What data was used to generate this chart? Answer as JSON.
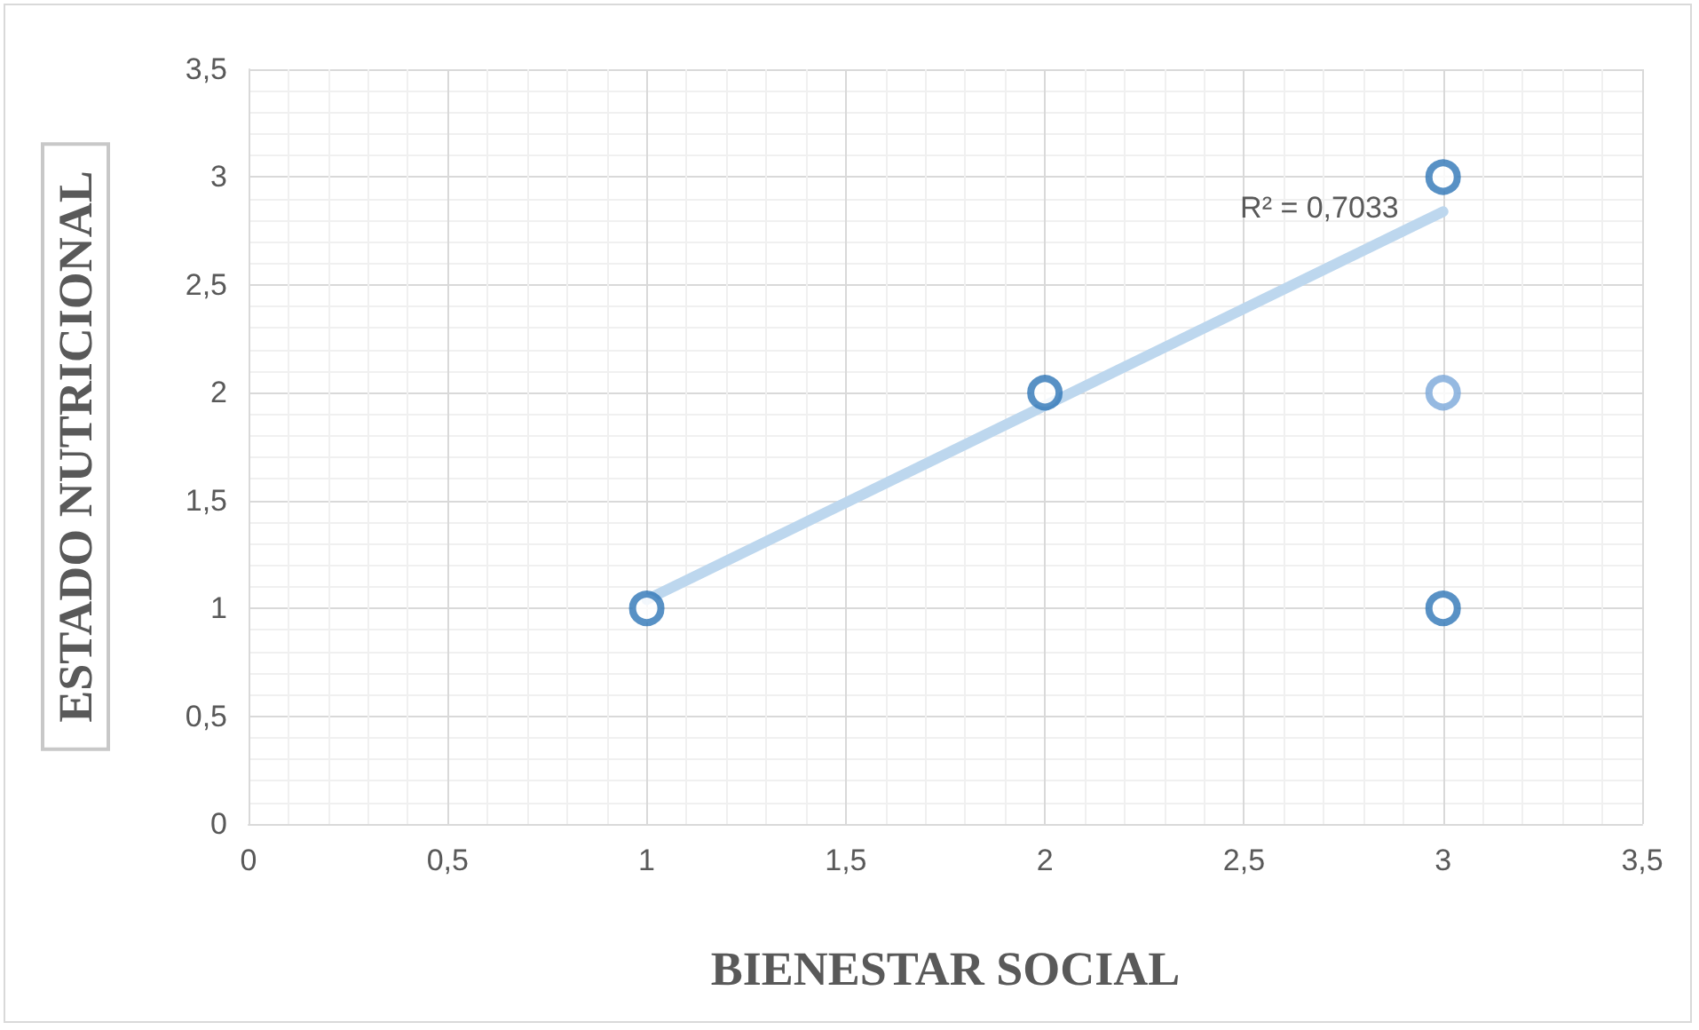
{
  "chart_data": {
    "type": "scatter",
    "xlabel": "BIENESTAR SOCIAL",
    "ylabel": "ESTADO NUTRICIONAL",
    "annotations": [
      "R² = 0,7033"
    ],
    "series": [
      {
        "x": [
          1,
          2,
          3,
          3,
          3
        ],
        "values": [
          1,
          2,
          3,
          2,
          1
        ],
        "colors": [
          "#2e75b6",
          "#2e75b6",
          "#2e75b6",
          "#7ba7d9",
          "#2e75b6"
        ]
      },
      {
        "type": "line",
        "x": [
          1,
          3
        ],
        "values": [
          1.04,
          2.84
        ],
        "color": "#bdd7ee",
        "marker": "none"
      }
    ],
    "xlim": [
      0,
      3.5
    ],
    "xticks": [
      0,
      {
        "value": 0.5,
        "label": "0,5"
      },
      1,
      {
        "value": 1.5,
        "label": "1,5"
      },
      2,
      {
        "value": 2.5,
        "label": "2,5"
      },
      3,
      {
        "value": 3.5,
        "label": "3,5"
      }
    ],
    "ylim": [
      0,
      3.5
    ],
    "yticks": [
      0,
      {
        "value": 0.5,
        "label": "0,5"
      },
      1,
      {
        "value": 1.5,
        "label": "1,5"
      },
      2,
      {
        "value": 2.5,
        "label": "2,5"
      },
      3,
      {
        "value": 3.5,
        "label": "3,5"
      }
    ],
    "grid": true,
    "marker": "circle"
  }
}
